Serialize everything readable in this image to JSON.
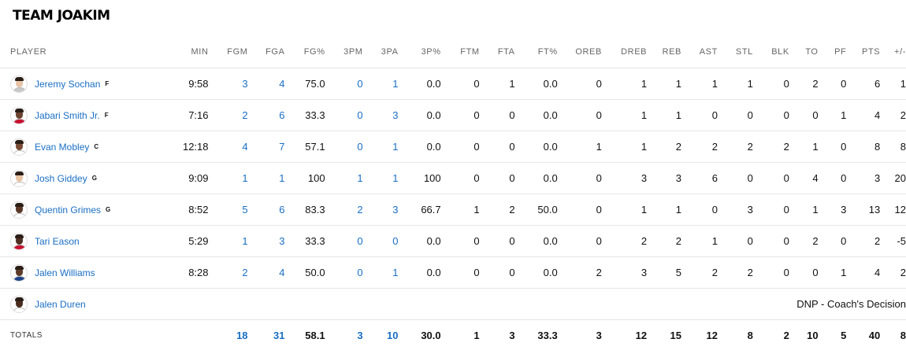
{
  "team_title": "TEAM JOAKIM",
  "columns": [
    "PLAYER",
    "MIN",
    "FGM",
    "FGA",
    "FG%",
    "3PM",
    "3PA",
    "3P%",
    "FTM",
    "FTA",
    "FT%",
    "OREB",
    "DREB",
    "REB",
    "AST",
    "STL",
    "BLK",
    "TO",
    "PF",
    "PTS",
    "+/-"
  ],
  "players": [
    {
      "name": "Jeremy Sochan",
      "pos": "F",
      "skin": "#e8c3a6",
      "jersey": "#c8c8c8",
      "stats": [
        "9:58",
        "3",
        "4",
        "75.0",
        "0",
        "1",
        "0.0",
        "0",
        "1",
        "0.0",
        "0",
        "1",
        "1",
        "1",
        "1",
        "0",
        "2",
        "0",
        "6",
        "1"
      ]
    },
    {
      "name": "Jabari Smith Jr.",
      "pos": "F",
      "skin": "#6b4330",
      "jersey": "#c8102e",
      "stats": [
        "7:16",
        "2",
        "6",
        "33.3",
        "0",
        "3",
        "0.0",
        "0",
        "0",
        "0.0",
        "0",
        "1",
        "1",
        "0",
        "0",
        "0",
        "0",
        "1",
        "4",
        "2"
      ]
    },
    {
      "name": "Evan Mobley",
      "pos": "C",
      "skin": "#7a4b34",
      "jersey": "#ffffff",
      "stats": [
        "12:18",
        "4",
        "7",
        "57.1",
        "0",
        "1",
        "0.0",
        "0",
        "0",
        "0.0",
        "1",
        "1",
        "2",
        "2",
        "2",
        "2",
        "1",
        "0",
        "8",
        "8"
      ]
    },
    {
      "name": "Josh Giddey",
      "pos": "G",
      "skin": "#e9c4a5",
      "jersey": "#ffffff",
      "stats": [
        "9:09",
        "1",
        "1",
        "100",
        "1",
        "1",
        "100",
        "0",
        "0",
        "0.0",
        "0",
        "3",
        "3",
        "6",
        "0",
        "0",
        "4",
        "0",
        "3",
        "20"
      ]
    },
    {
      "name": "Quentin Grimes",
      "pos": "G",
      "skin": "#5a3626",
      "jersey": "#ffffff",
      "stats": [
        "8:52",
        "5",
        "6",
        "83.3",
        "2",
        "3",
        "66.7",
        "1",
        "2",
        "50.0",
        "0",
        "1",
        "1",
        "0",
        "3",
        "0",
        "1",
        "3",
        "13",
        "12"
      ]
    },
    {
      "name": "Tari Eason",
      "pos": "",
      "skin": "#4e2f22",
      "jersey": "#c8102e",
      "stats": [
        "5:29",
        "1",
        "3",
        "33.3",
        "0",
        "0",
        "0.0",
        "0",
        "0",
        "0.0",
        "0",
        "2",
        "2",
        "1",
        "0",
        "0",
        "2",
        "0",
        "2",
        "-5"
      ]
    },
    {
      "name": "Jalen Williams",
      "pos": "",
      "skin": "#5e3a28",
      "jersey": "#1d428a",
      "stats": [
        "8:28",
        "2",
        "4",
        "50.0",
        "0",
        "1",
        "0.0",
        "0",
        "0",
        "0.0",
        "2",
        "3",
        "5",
        "2",
        "2",
        "0",
        "0",
        "1",
        "4",
        "2"
      ]
    }
  ],
  "dnp_player": {
    "name": "Jalen Duren",
    "skin": "#4a2c1f",
    "jersey": "#ffffff",
    "note": "DNP - Coach's Decision"
  },
  "totals": {
    "label": "TOTALS",
    "stats": [
      "",
      "18",
      "31",
      "58.1",
      "3",
      "10",
      "30.0",
      "1",
      "3",
      "33.3",
      "3",
      "12",
      "15",
      "12",
      "8",
      "2",
      "10",
      "5",
      "40",
      "8"
    ]
  },
  "link_columns": [
    1,
    2,
    4,
    5
  ],
  "colors": {
    "link": "#1a6fc4",
    "border": "#e6e6e6",
    "header_text": "#666666"
  }
}
